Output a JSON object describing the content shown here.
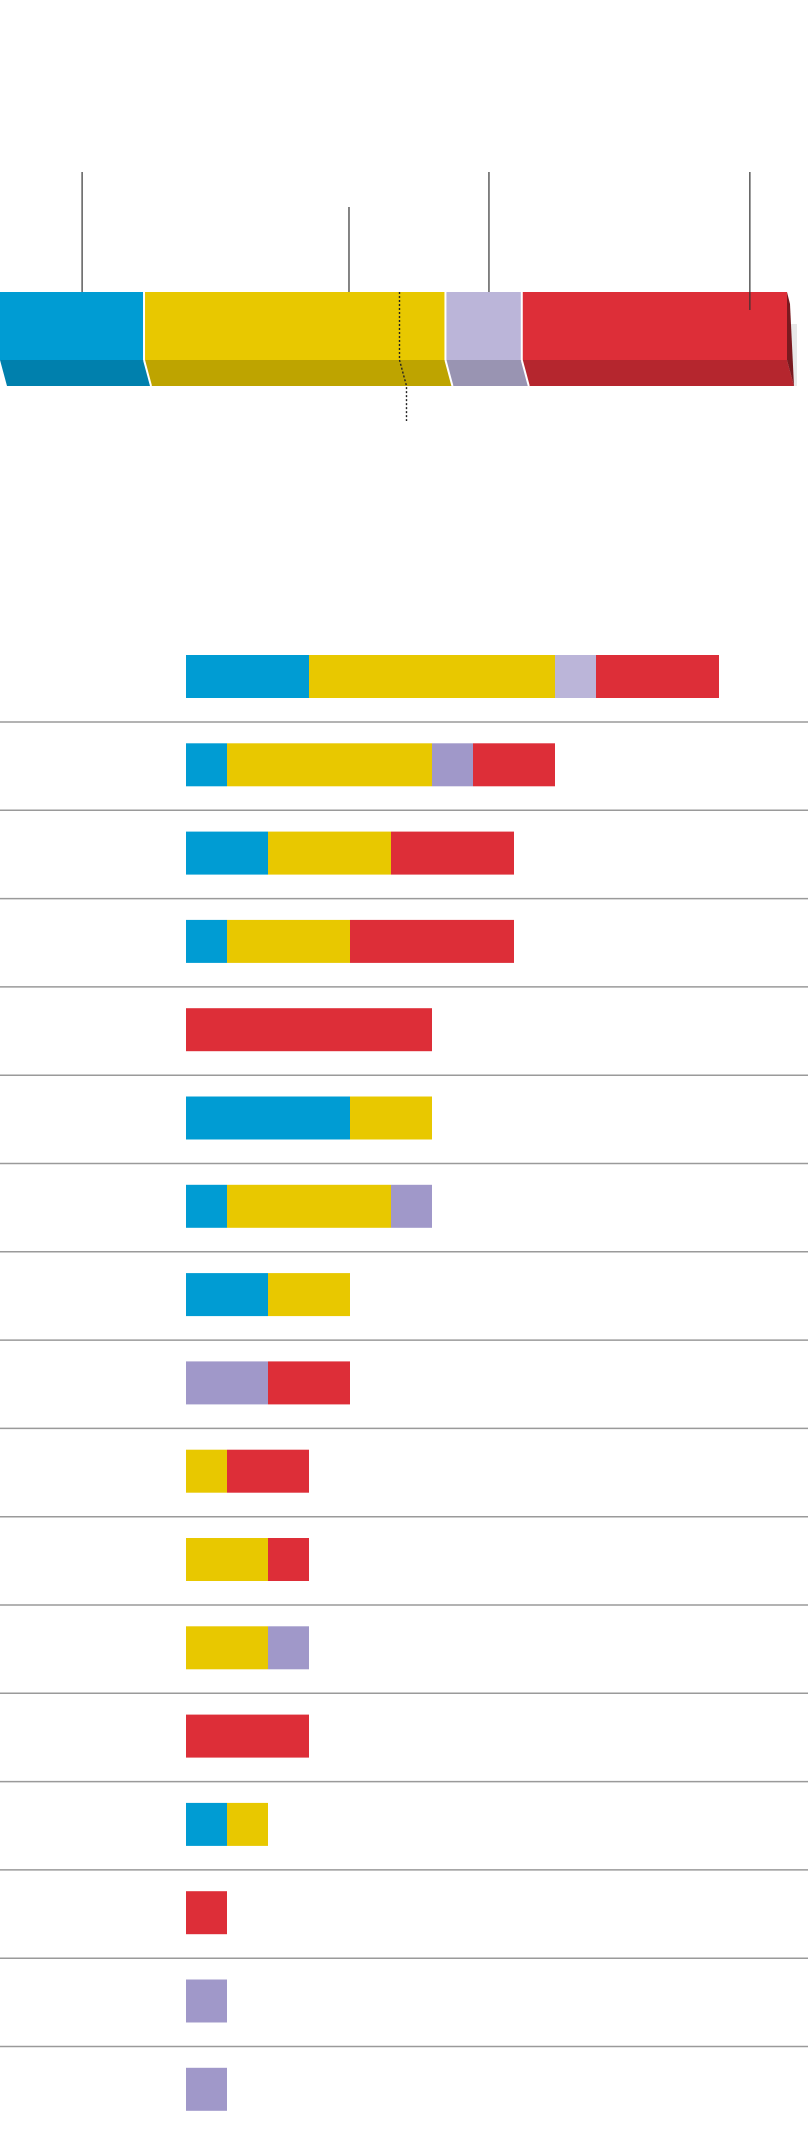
{
  "colors": {
    "blue": "#009cd3",
    "yellow": "#e8c800",
    "lavender": "#bbb5d9",
    "purple": "#a098c9",
    "red": "#dd2e38",
    "separator": "#9a9a9a"
  },
  "chart_data": [
    {
      "type": "bar",
      "orientation": "horizontal",
      "stacked": true,
      "style": "3d",
      "title": "",
      "segments": [
        {
          "color": "blue",
          "value": 18.3
        },
        {
          "color": "yellow",
          "value": 38.3
        },
        {
          "color": "lavender",
          "value": 9.7
        },
        {
          "color": "red",
          "value": 33.7
        }
      ],
      "reference_line": {
        "value": 50,
        "style": "dotted"
      },
      "callouts": [
        "blue",
        "yellow",
        "lavender",
        "red"
      ]
    },
    {
      "type": "bar",
      "orientation": "horizontal",
      "stacked": true,
      "unit_width": 2,
      "legend": "none",
      "rows": [
        [
          {
            "color": "blue",
            "value": 6
          },
          {
            "color": "yellow",
            "value": 12
          },
          {
            "color": "lavender",
            "value": 2
          },
          {
            "color": "red",
            "value": 6
          }
        ],
        [
          {
            "color": "blue",
            "value": 2
          },
          {
            "color": "yellow",
            "value": 10
          },
          {
            "color": "purple",
            "value": 2
          },
          {
            "color": "red",
            "value": 4
          }
        ],
        [
          {
            "color": "blue",
            "value": 4
          },
          {
            "color": "yellow",
            "value": 6
          },
          {
            "color": "red",
            "value": 6
          }
        ],
        [
          {
            "color": "blue",
            "value": 2
          },
          {
            "color": "yellow",
            "value": 6
          },
          {
            "color": "red",
            "value": 8
          }
        ],
        [
          {
            "color": "red",
            "value": 12
          }
        ],
        [
          {
            "color": "blue",
            "value": 8
          },
          {
            "color": "yellow",
            "value": 4
          }
        ],
        [
          {
            "color": "blue",
            "value": 2
          },
          {
            "color": "yellow",
            "value": 8
          },
          {
            "color": "purple",
            "value": 2
          }
        ],
        [
          {
            "color": "blue",
            "value": 4
          },
          {
            "color": "yellow",
            "value": 4
          }
        ],
        [
          {
            "color": "purple",
            "value": 4
          },
          {
            "color": "red",
            "value": 4
          }
        ],
        [
          {
            "color": "yellow",
            "value": 2
          },
          {
            "color": "red",
            "value": 4
          }
        ],
        [
          {
            "color": "yellow",
            "value": 4
          },
          {
            "color": "red",
            "value": 2
          }
        ],
        [
          {
            "color": "yellow",
            "value": 4
          },
          {
            "color": "purple",
            "value": 2
          }
        ],
        [
          {
            "color": "red",
            "value": 6
          }
        ],
        [
          {
            "color": "blue",
            "value": 2
          },
          {
            "color": "yellow",
            "value": 2
          }
        ],
        [
          {
            "color": "red",
            "value": 2
          }
        ],
        [
          {
            "color": "purple",
            "value": 2
          }
        ],
        [
          {
            "color": "purple",
            "value": 2
          }
        ]
      ]
    }
  ]
}
